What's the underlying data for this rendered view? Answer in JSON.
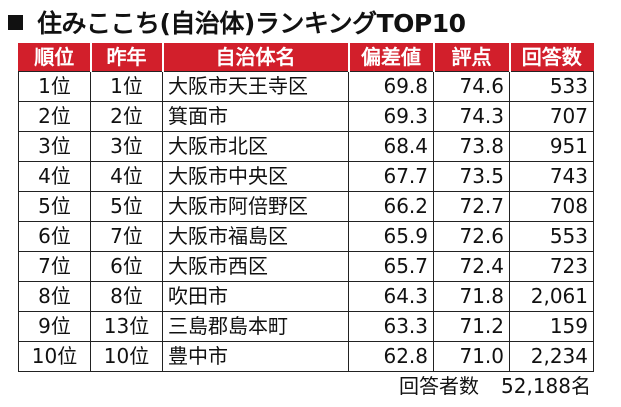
{
  "title": "住みここち(自治体)ランキングTOP10",
  "columns": [
    "順位",
    "昨年",
    "自治体名",
    "偏差値",
    "評点",
    "回答数"
  ],
  "rows": [
    {
      "rank": "1位",
      "prev": "1位",
      "name": "大阪市天王寺区",
      "deviation": "69.8",
      "score": "74.6",
      "responses": "533"
    },
    {
      "rank": "2位",
      "prev": "2位",
      "name": "箕面市",
      "deviation": "69.3",
      "score": "74.3",
      "responses": "707"
    },
    {
      "rank": "3位",
      "prev": "3位",
      "name": "大阪市北区",
      "deviation": "68.4",
      "score": "73.8",
      "responses": "951"
    },
    {
      "rank": "4位",
      "prev": "4位",
      "name": "大阪市中央区",
      "deviation": "67.7",
      "score": "73.5",
      "responses": "743"
    },
    {
      "rank": "5位",
      "prev": "5位",
      "name": "大阪市阿倍野区",
      "deviation": "66.2",
      "score": "72.7",
      "responses": "708"
    },
    {
      "rank": "6位",
      "prev": "7位",
      "name": "大阪市福島区",
      "deviation": "65.9",
      "score": "72.6",
      "responses": "553"
    },
    {
      "rank": "7位",
      "prev": "6位",
      "name": "大阪市西区",
      "deviation": "65.7",
      "score": "72.4",
      "responses": "723"
    },
    {
      "rank": "8位",
      "prev": "8位",
      "name": "吹田市",
      "deviation": "64.3",
      "score": "71.8",
      "responses": "2,061"
    },
    {
      "rank": "9位",
      "prev": "13位",
      "name": "三島郡島本町",
      "deviation": "63.3",
      "score": "71.2",
      "responses": "159"
    },
    {
      "rank": "10位",
      "prev": "10位",
      "name": "豊中市",
      "deviation": "62.8",
      "score": "71.0",
      "responses": "2,234"
    }
  ],
  "footer": {
    "label": "回答者数",
    "value": "52,188名"
  },
  "colors": {
    "header_bg": "#d21f2b",
    "header_text": "#ffffff"
  },
  "icons": {
    "title_marker": "black-square-icon"
  }
}
